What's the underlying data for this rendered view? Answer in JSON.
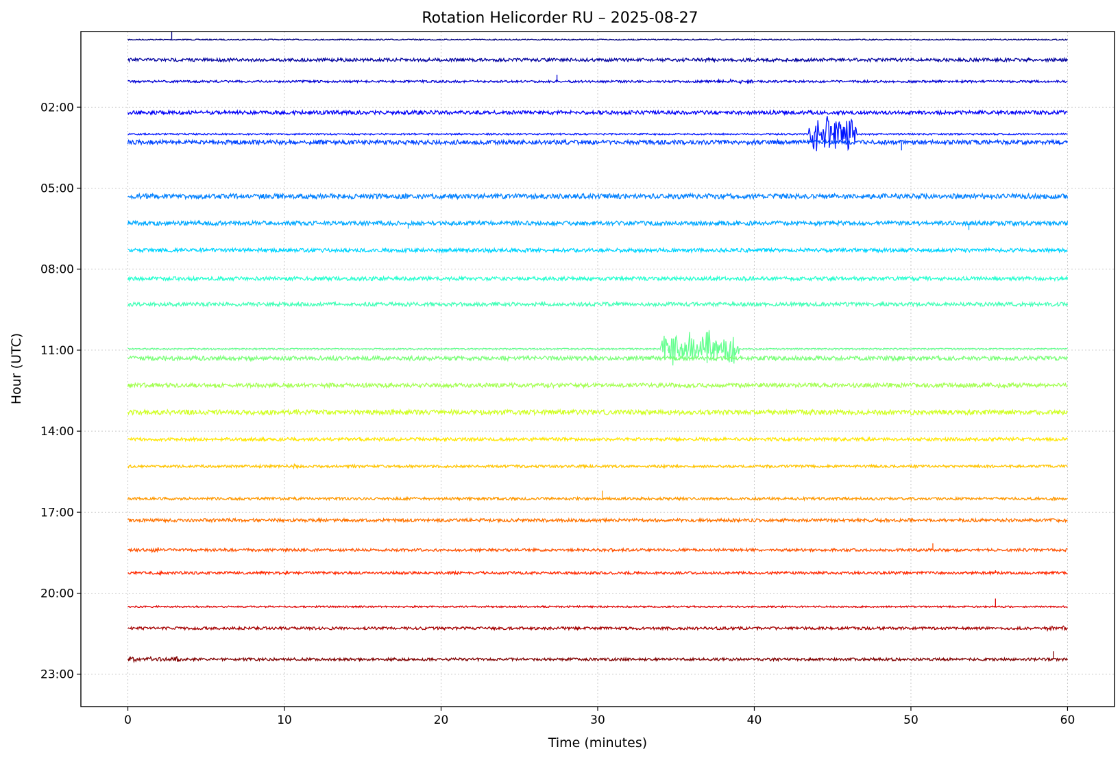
{
  "chart_data": {
    "type": "line",
    "title": "Rotation Helicorder RU – 2025-08-27",
    "xlabel": "Time (minutes)",
    "ylabel": "Hour (UTC)",
    "xlim": [
      -3,
      63
    ],
    "ylim": [
      -0.8,
      24.2
    ],
    "x_ticks": [
      0,
      10,
      20,
      30,
      40,
      50,
      60
    ],
    "y_ticks": [
      {
        "value": 2,
        "label": "02:00"
      },
      {
        "value": 5,
        "label": "05:00"
      },
      {
        "value": 8,
        "label": "08:00"
      },
      {
        "value": 11,
        "label": "11:00"
      },
      {
        "value": 14,
        "label": "14:00"
      },
      {
        "value": 17,
        "label": "17:00"
      },
      {
        "value": 20,
        "label": "20:00"
      },
      {
        "value": 23,
        "label": "23:00"
      }
    ],
    "grid": true,
    "y_inverted": true,
    "colormap": "jet",
    "traces": [
      {
        "hour": 0,
        "offset": -0.5,
        "color": "#00007f",
        "amp": 0.02,
        "spikes": [
          {
            "x": 2.8,
            "a": -0.3
          }
        ]
      },
      {
        "hour": 1,
        "offset": -0.75,
        "color": "#00009f",
        "amp": 0.06,
        "bursts": [
          [
            0.5,
            3.5,
            0.05
          ],
          [
            9.5,
            11.5,
            0.05
          ],
          [
            36,
            38,
            0.04
          ],
          [
            47,
            50,
            0.05
          ]
        ]
      },
      {
        "hour": 2,
        "offset": -0.95,
        "color": "#0000d4",
        "amp": 0.04,
        "spikes": [
          {
            "x": 27.4,
            "a": -0.25
          }
        ],
        "bursts": [
          [
            37.5,
            40,
            0.08
          ]
        ]
      },
      {
        "hour": 3,
        "offset": -0.8,
        "color": "#0000f6",
        "amp": 0.07,
        "bursts": [
          [
            17.5,
            18.5,
            0.06
          ],
          [
            26,
            28.5,
            0.06
          ],
          [
            32,
            33,
            0.05
          ],
          [
            48,
            50,
            0.06
          ]
        ]
      },
      {
        "hour": 4,
        "offset": -1.0,
        "color": "#0014ff",
        "amp": 0.03,
        "bursts": [
          [
            43.5,
            46.5,
            0.7
          ]
        ]
      },
      {
        "hour": 4,
        "offset": -0.7,
        "color": "#0044ff",
        "amp": 0.08,
        "spikes": [
          {
            "x": 49.4,
            "a": 0.3
          }
        ],
        "bursts": [
          [
            22,
            25,
            0.06
          ]
        ]
      },
      {
        "hour": 5,
        "offset": 0.3,
        "color": "#0080ff",
        "amp": 0.09,
        "bursts": [
          [
            0,
            1.5,
            0.07
          ]
        ]
      },
      {
        "hour": 6,
        "offset": 0.3,
        "color": "#00a8ff",
        "amp": 0.08,
        "spikes": [
          {
            "x": 17.9,
            "a": 0.2
          },
          {
            "x": 53.7,
            "a": 0.25
          }
        ]
      },
      {
        "hour": 7,
        "offset": 0.3,
        "color": "#00d4ff",
        "amp": 0.07,
        "bursts": [
          [
            43.5,
            44.5,
            0.08
          ]
        ]
      },
      {
        "hour": 8,
        "offset": 0.35,
        "color": "#26ffd0",
        "amp": 0.07,
        "bursts": [
          [
            12,
            13,
            0.06
          ],
          [
            15.5,
            16.5,
            0.1
          ]
        ]
      },
      {
        "hour": 9,
        "offset": 0.3,
        "color": "#40ffb6",
        "amp": 0.07,
        "bursts": [
          [
            29,
            31,
            0.05
          ]
        ]
      },
      {
        "hour": 10,
        "offset": 0.95,
        "color": "#66ff90",
        "amp": 0.02,
        "bursts": [
          [
            34,
            39,
            0.7
          ]
        ]
      },
      {
        "hour": 11,
        "offset": 0.3,
        "color": "#7cff79",
        "amp": 0.08
      },
      {
        "hour": 12,
        "offset": 0.3,
        "color": "#a4ff53",
        "amp": 0.08,
        "bursts": [
          [
            52.5,
            53.5,
            0.08
          ],
          [
            55,
            56,
            0.1
          ]
        ]
      },
      {
        "hour": 13,
        "offset": 0.3,
        "color": "#d0ff26",
        "amp": 0.09,
        "bursts": [
          [
            5,
            7,
            0.08
          ],
          [
            8,
            9,
            0.08
          ],
          [
            45.5,
            46.5,
            0.09
          ]
        ]
      },
      {
        "hour": 14,
        "offset": 0.3,
        "color": "#ffe600",
        "amp": 0.06
      },
      {
        "hour": 15,
        "offset": 0.3,
        "color": "#ffc400",
        "amp": 0.05,
        "bursts": [
          [
            10,
            11,
            0.08
          ],
          [
            13.5,
            15,
            0.06
          ]
        ]
      },
      {
        "hour": 16,
        "offset": 0.5,
        "color": "#ff9800",
        "amp": 0.05,
        "spikes": [
          {
            "x": 30.3,
            "a": -0.3
          }
        ],
        "bursts": [
          [
            58.5,
            60,
            0.06
          ]
        ]
      },
      {
        "hour": 17,
        "offset": 0.3,
        "color": "#ff7300",
        "amp": 0.06,
        "bursts": [
          [
            0,
            1,
            0.07
          ]
        ]
      },
      {
        "hour": 18,
        "offset": 0.4,
        "color": "#ff5200",
        "amp": 0.05,
        "spikes": [
          {
            "x": 51.4,
            "a": -0.25
          }
        ],
        "bursts": [
          [
            1.5,
            2,
            0.1
          ]
        ]
      },
      {
        "hour": 19,
        "offset": 0.25,
        "color": "#ff2900",
        "amp": 0.05,
        "spikes": [
          {
            "x": 55.4,
            "a": -0.1
          }
        ]
      },
      {
        "hour": 20,
        "offset": 0.5,
        "color": "#df0000",
        "amp": 0.03,
        "spikes": [
          {
            "x": 55.4,
            "a": -0.3
          }
        ]
      },
      {
        "hour": 21,
        "offset": 0.3,
        "color": "#a40000",
        "amp": 0.05,
        "bursts": [
          [
            58.5,
            60,
            0.1
          ]
        ]
      },
      {
        "hour": 22,
        "offset": 0.45,
        "color": "#800000",
        "amp": 0.05,
        "spikes": [
          {
            "x": 59.1,
            "a": -0.3
          }
        ],
        "bursts": [
          [
            0,
            3.5,
            0.1
          ]
        ]
      }
    ]
  }
}
